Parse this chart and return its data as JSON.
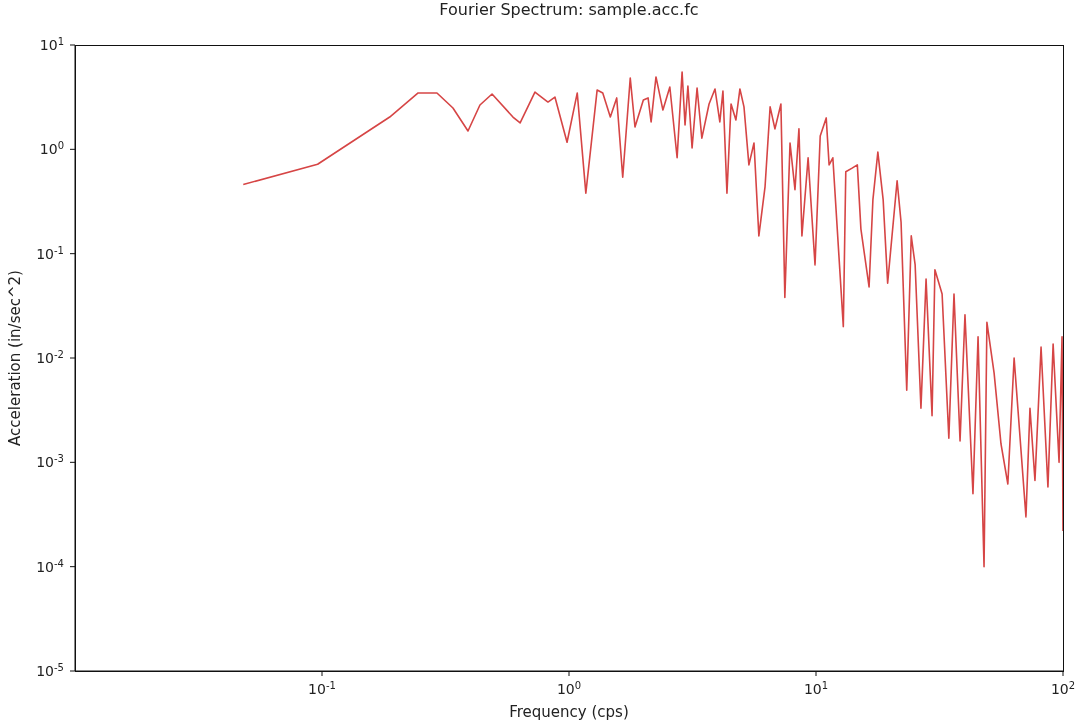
{
  "chart_data": {
    "type": "line",
    "title": "Fourier Spectrum: sample.acc.fc",
    "xlabel": "Frequency (cps)",
    "ylabel": "Acceleration (in/sec^2)",
    "log": "xy",
    "grid": false,
    "marker": "none",
    "line_style": "solid",
    "xlim": [
      0.01,
      100
    ],
    "ylim": [
      1e-05,
      10
    ],
    "xticks": [
      {
        "value": 0.1,
        "label": "10$^{-1}$"
      },
      {
        "value": 1,
        "label": "10$^{0}$"
      },
      {
        "value": 10,
        "label": "10$^{1}$"
      },
      {
        "value": 100,
        "label": "10$^{2}$"
      }
    ],
    "yticks": [
      {
        "value": 10,
        "label": "10$^{1}$"
      },
      {
        "value": 1,
        "label": "10$^{0}$"
      },
      {
        "value": 0.1,
        "label": "10$^{-1}$"
      },
      {
        "value": 0.01,
        "label": "10$^{-2}$"
      },
      {
        "value": 0.001,
        "label": "10$^{-3}$"
      },
      {
        "value": 0.0001,
        "label": "10$^{-4}$"
      },
      {
        "value": 1e-05,
        "label": "10$^{-5}$"
      }
    ],
    "series": [
      {
        "color": "#d64545",
        "x": [
          0.048,
          0.096,
          0.188,
          0.245,
          0.292,
          0.339,
          0.39,
          0.436,
          0.488,
          0.593,
          0.634,
          0.728,
          0.822,
          0.877,
          0.982,
          1.08,
          1.17,
          1.3,
          1.37,
          1.47,
          1.56,
          1.65,
          1.77,
          1.85,
          2.0,
          2.09,
          2.15,
          2.25,
          2.4,
          2.56,
          2.74,
          2.87,
          2.95,
          3.03,
          3.15,
          3.3,
          3.45,
          3.69,
          3.9,
          4.08,
          4.2,
          4.36,
          4.53,
          4.74,
          4.92,
          5.11,
          5.35,
          5.61,
          5.87,
          6.22,
          6.52,
          6.82,
          7.21,
          7.48,
          7.85,
          8.22,
          8.53,
          8.77,
          9.29,
          9.91,
          10.4,
          11.0,
          11.3,
          11.7,
          12.9,
          13.2,
          14.0,
          14.7,
          15.2,
          16.4,
          17.0,
          17.8,
          18.7,
          19.5,
          21.3,
          22.1,
          23.3,
          24.3,
          25.2,
          26.6,
          27.9,
          29.5,
          30.3,
          32.4,
          34.5,
          36.2,
          38.3,
          40.1,
          43.2,
          45.3,
          47.9,
          49.2,
          52.6,
          56.1,
          59.8,
          63.4,
          70.8,
          73.5,
          77.0,
          81.5,
          86.9,
          91.2,
          96.4,
          99.1,
          100
        ],
        "values": [
          0.46,
          0.72,
          2.04,
          3.47,
          3.47,
          2.49,
          1.5,
          2.66,
          3.39,
          2.04,
          1.79,
          3.54,
          2.84,
          3.17,
          1.17,
          3.47,
          0.38,
          3.71,
          3.47,
          2.04,
          3.11,
          0.54,
          4.83,
          1.64,
          2.97,
          3.11,
          1.83,
          4.94,
          2.38,
          3.96,
          0.83,
          5.51,
          1.71,
          4.05,
          1.03,
          3.87,
          1.28,
          2.72,
          3.79,
          1.83,
          3.62,
          0.38,
          2.72,
          1.91,
          3.79,
          2.55,
          0.71,
          1.15,
          0.148,
          0.44,
          2.55,
          1.57,
          2.72,
          0.038,
          1.15,
          0.41,
          1.57,
          0.148,
          0.83,
          0.078,
          1.34,
          2.0,
          0.71,
          0.83,
          0.02,
          0.61,
          0.66,
          0.71,
          0.172,
          0.048,
          0.33,
          0.94,
          0.33,
          0.052,
          0.5,
          0.2,
          0.0049,
          0.148,
          0.078,
          0.0033,
          0.057,
          0.0028,
          0.07,
          0.041,
          0.0017,
          0.041,
          0.0016,
          0.026,
          0.0005,
          0.016,
          0.0001,
          0.022,
          0.0072,
          0.0015,
          0.00062,
          0.01,
          0.0003,
          0.0033,
          0.00067,
          0.0127,
          0.00058,
          0.0136,
          0.001,
          0.016,
          0.00022
        ]
      }
    ]
  }
}
